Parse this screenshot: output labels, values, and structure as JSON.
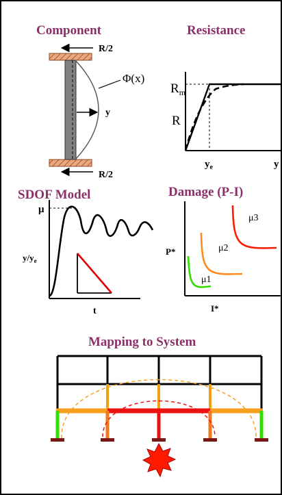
{
  "panels": {
    "component": {
      "title": "Component",
      "load_top": "R/2",
      "load_bottom": "R/2",
      "shape_label": "Φ(x)",
      "disp_label": "y"
    },
    "resistance": {
      "title": "Resistance",
      "rm_label": "R",
      "rm_sub": "m",
      "r_label": "R",
      "ye_label": "y",
      "ye_sub": "e",
      "y_label": "y"
    },
    "sdof": {
      "title": "SDOF Model",
      "mu_label": "μ",
      "y_label": "y/y",
      "y_sub": "e",
      "t_label": "t"
    },
    "damage": {
      "title": "Damage (P-I)",
      "p_label": "P*",
      "i_label": "I*",
      "curves": [
        {
          "label": "μ1",
          "color": "#33dd00"
        },
        {
          "label": "μ2",
          "color": "#ff8a1e"
        },
        {
          "label": "μ3",
          "color": "#ff1a00"
        }
      ]
    },
    "mapping": {
      "title": "Mapping to System"
    }
  }
}
